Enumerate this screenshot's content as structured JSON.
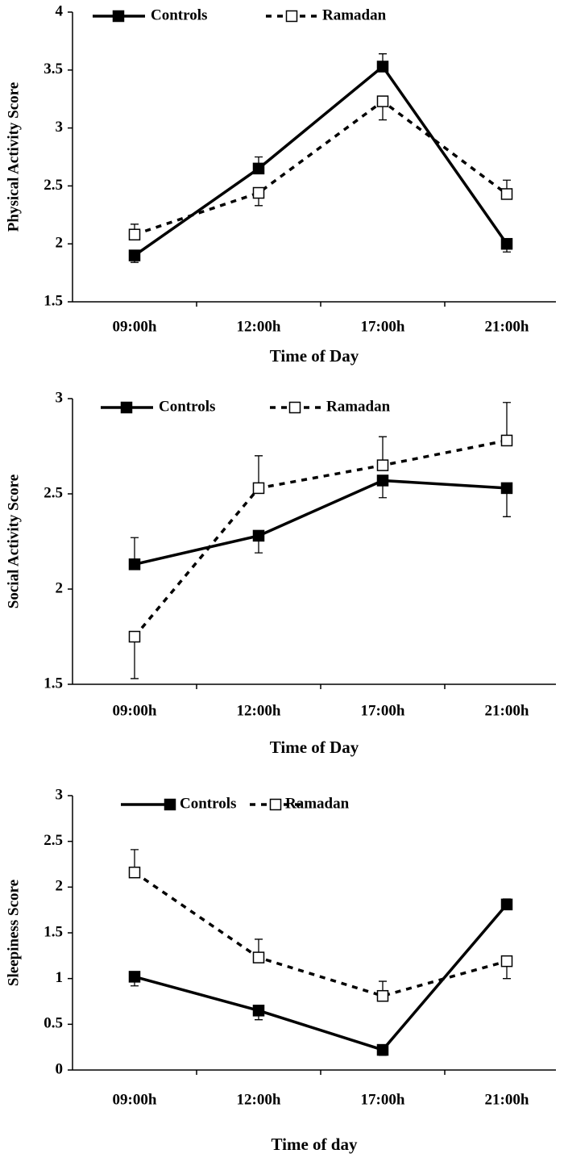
{
  "chart_data": [
    {
      "type": "line",
      "x_label": "Time of Day",
      "y_label": "Physical Activity Score",
      "categories": [
        "09:00h",
        "12:00h",
        "17:00h",
        "21:00h"
      ],
      "ylim": [
        1.5,
        4
      ],
      "yticks": [
        1.5,
        2,
        2.5,
        3,
        3.5,
        4
      ],
      "series": [
        {
          "name": "Controls",
          "color": "#000000",
          "style": "solid",
          "marker": "filled-square",
          "values": [
            1.9,
            2.65,
            3.53,
            2.0
          ],
          "errors": [
            0.06,
            0.1,
            0.11,
            0.07
          ],
          "error_side": [
            "down",
            "up",
            "up",
            "down"
          ]
        },
        {
          "name": "Ramadan",
          "color": "#000000",
          "style": "dashed",
          "marker": "open-square",
          "values": [
            2.08,
            2.44,
            3.23,
            2.43
          ],
          "errors": [
            0.09,
            0.11,
            0.16,
            0.12
          ],
          "error_side": [
            "up",
            "down",
            "down",
            "up"
          ]
        }
      ]
    },
    {
      "type": "line",
      "x_label": "Time of Day",
      "y_label": "Social Activity Score",
      "categories": [
        "09:00h",
        "12:00h",
        "17:00h",
        "21:00h"
      ],
      "ylim": [
        1.5,
        3
      ],
      "yticks": [
        1.5,
        2,
        2.5,
        3
      ],
      "series": [
        {
          "name": "Controls",
          "color": "#000000",
          "style": "solid",
          "marker": "filled-square",
          "values": [
            2.13,
            2.28,
            2.57,
            2.53
          ],
          "errors": [
            0.14,
            0.09,
            0.09,
            0.15
          ],
          "error_side": [
            "up",
            "down",
            "down",
            "down"
          ]
        },
        {
          "name": "Ramadan",
          "color": "#000000",
          "style": "dashed",
          "marker": "open-square",
          "values": [
            1.75,
            2.53,
            2.65,
            2.78
          ],
          "errors": [
            0.22,
            0.17,
            0.15,
            0.2
          ],
          "error_side": [
            "down",
            "up",
            "up",
            "up"
          ]
        }
      ]
    },
    {
      "type": "line",
      "x_label": "Time of day",
      "y_label": "Sleepiness Score",
      "categories": [
        "09:00h",
        "12:00h",
        "17:00h",
        "21:00h"
      ],
      "ylim": [
        0,
        3
      ],
      "yticks": [
        0,
        0.5,
        1,
        1.5,
        2,
        2.5,
        3
      ],
      "series": [
        {
          "name": "Controls",
          "color": "#000000",
          "style": "solid",
          "marker": "filled-square",
          "values": [
            1.02,
            0.65,
            0.22,
            1.81
          ],
          "errors": [
            0.1,
            0.1,
            0.06,
            0.06
          ],
          "error_side": [
            "down",
            "down",
            "down",
            "up"
          ]
        },
        {
          "name": "Ramadan",
          "color": "#000000",
          "style": "dashed",
          "marker": "open-square",
          "values": [
            2.16,
            1.23,
            0.81,
            1.19
          ],
          "errors": [
            0.25,
            0.2,
            0.16,
            0.19
          ],
          "error_side": [
            "up",
            "up",
            "up",
            "down"
          ]
        }
      ]
    }
  ]
}
